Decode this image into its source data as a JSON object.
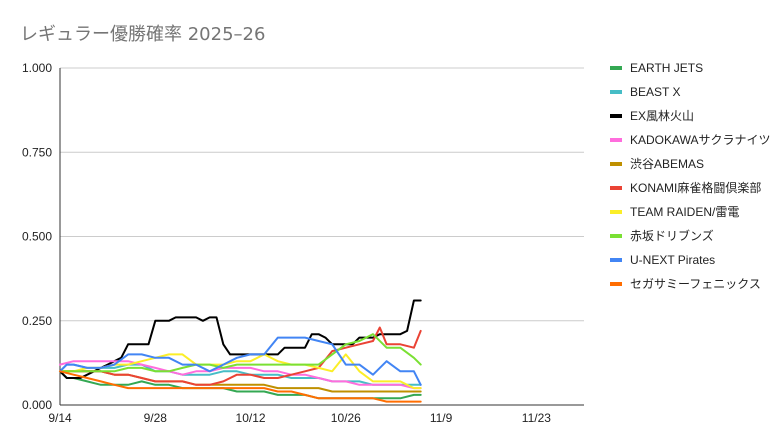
{
  "chart_data": {
    "type": "line",
    "title": "レギュラー優勝確率 2025–26",
    "xlabel": "",
    "ylabel": "",
    "ylim": [
      0,
      1
    ],
    "y_ticks": [
      "0.000",
      "0.250",
      "0.500",
      "0.750",
      "1.000"
    ],
    "y_tick_values": [
      0,
      0.25,
      0.5,
      0.75,
      1.0
    ],
    "x_domain_days": [
      0,
      77
    ],
    "x_ticks": [
      {
        "label": "9/14",
        "day": 0
      },
      {
        "label": "9/28",
        "day": 14
      },
      {
        "label": "10/12",
        "day": 28
      },
      {
        "label": "10/26",
        "day": 42
      },
      {
        "label": "11/9",
        "day": 56
      },
      {
        "label": "11/23",
        "day": 70
      }
    ],
    "grid": "horizontal",
    "legend_position": "right",
    "series": [
      {
        "name": "EARTH JETS",
        "color": "#34a853",
        "x": [
          0,
          1,
          2,
          4,
          6,
          8,
          10,
          12,
          14,
          16,
          18,
          20,
          22,
          24,
          26,
          28,
          30,
          32,
          34,
          36,
          38,
          40,
          42,
          44,
          46,
          48,
          50,
          52,
          53
        ],
        "y": [
          0.1,
          0.08,
          0.08,
          0.07,
          0.06,
          0.06,
          0.06,
          0.07,
          0.06,
          0.06,
          0.05,
          0.05,
          0.05,
          0.05,
          0.04,
          0.04,
          0.04,
          0.03,
          0.03,
          0.03,
          0.02,
          0.02,
          0.02,
          0.02,
          0.02,
          0.02,
          0.02,
          0.03,
          0.03
        ]
      },
      {
        "name": "BEAST X",
        "color": "#46bdc6",
        "x": [
          0,
          1,
          2,
          4,
          6,
          8,
          10,
          12,
          14,
          16,
          18,
          20,
          22,
          24,
          26,
          28,
          30,
          32,
          34,
          36,
          38,
          40,
          42,
          44,
          46,
          48,
          50,
          52,
          53
        ],
        "y": [
          0.1,
          0.12,
          0.12,
          0.11,
          0.11,
          0.11,
          0.12,
          0.12,
          0.1,
          0.1,
          0.09,
          0.09,
          0.09,
          0.1,
          0.1,
          0.09,
          0.09,
          0.09,
          0.08,
          0.08,
          0.08,
          0.07,
          0.07,
          0.07,
          0.06,
          0.06,
          0.06,
          0.06,
          0.06
        ]
      },
      {
        "name": "EX風林火山",
        "color": "#000000",
        "x": [
          0,
          1,
          2,
          3,
          4,
          5,
          6,
          7,
          8,
          9,
          10,
          11,
          12,
          13,
          14,
          15,
          16,
          17,
          18,
          19,
          20,
          21,
          22,
          23,
          24,
          25,
          26,
          27,
          28,
          29,
          30,
          31,
          32,
          33,
          34,
          35,
          36,
          37,
          38,
          39,
          40,
          41,
          42,
          43,
          44,
          45,
          46,
          47,
          48,
          49,
          50,
          51,
          52,
          53
        ],
        "y": [
          0.1,
          0.08,
          0.08,
          0.08,
          0.09,
          0.1,
          0.11,
          0.12,
          0.13,
          0.14,
          0.18,
          0.18,
          0.18,
          0.18,
          0.25,
          0.25,
          0.25,
          0.26,
          0.26,
          0.26,
          0.26,
          0.25,
          0.26,
          0.26,
          0.18,
          0.15,
          0.15,
          0.15,
          0.15,
          0.15,
          0.15,
          0.15,
          0.15,
          0.17,
          0.17,
          0.17,
          0.17,
          0.21,
          0.21,
          0.2,
          0.18,
          0.18,
          0.18,
          0.18,
          0.2,
          0.2,
          0.2,
          0.21,
          0.21,
          0.21,
          0.21,
          0.22,
          0.31,
          0.31
        ]
      },
      {
        "name": "KADOKAWAサクラナイツ",
        "color": "#ff6ddd",
        "x": [
          0,
          2,
          4,
          6,
          8,
          10,
          12,
          14,
          16,
          18,
          20,
          22,
          24,
          26,
          28,
          30,
          32,
          34,
          36,
          38,
          40,
          42,
          44,
          46,
          48,
          50,
          52,
          53
        ],
        "y": [
          0.12,
          0.13,
          0.13,
          0.13,
          0.13,
          0.13,
          0.12,
          0.11,
          0.1,
          0.09,
          0.1,
          0.1,
          0.11,
          0.11,
          0.11,
          0.1,
          0.1,
          0.09,
          0.09,
          0.08,
          0.07,
          0.07,
          0.06,
          0.06,
          0.06,
          0.06,
          0.05,
          0.05
        ]
      },
      {
        "name": "渋谷ABEMAS",
        "color": "#bf9000",
        "x": [
          0,
          2,
          4,
          6,
          8,
          10,
          12,
          14,
          16,
          18,
          20,
          22,
          24,
          26,
          28,
          30,
          32,
          34,
          36,
          38,
          40,
          42,
          44,
          46,
          48,
          50,
          52,
          53
        ],
        "y": [
          0.1,
          0.1,
          0.1,
          0.1,
          0.09,
          0.09,
          0.08,
          0.07,
          0.07,
          0.07,
          0.06,
          0.06,
          0.06,
          0.06,
          0.06,
          0.06,
          0.05,
          0.05,
          0.05,
          0.05,
          0.04,
          0.04,
          0.04,
          0.04,
          0.04,
          0.04,
          0.04,
          0.04
        ]
      },
      {
        "name": "KONAMI麻雀格闘倶楽部",
        "color": "#ea4335",
        "x": [
          0,
          2,
          4,
          6,
          8,
          10,
          12,
          14,
          16,
          18,
          20,
          22,
          24,
          26,
          28,
          30,
          32,
          34,
          36,
          38,
          40,
          42,
          44,
          46,
          47,
          48,
          50,
          52,
          53
        ],
        "y": [
          0.1,
          0.1,
          0.1,
          0.1,
          0.09,
          0.09,
          0.08,
          0.07,
          0.07,
          0.07,
          0.06,
          0.06,
          0.07,
          0.09,
          0.09,
          0.08,
          0.08,
          0.09,
          0.1,
          0.11,
          0.16,
          0.17,
          0.18,
          0.19,
          0.23,
          0.18,
          0.18,
          0.17,
          0.22
        ]
      },
      {
        "name": "TEAM RAIDEN/雷電",
        "color": "#fbee28",
        "x": [
          0,
          2,
          4,
          6,
          8,
          10,
          12,
          14,
          16,
          18,
          20,
          22,
          24,
          26,
          28,
          30,
          32,
          34,
          36,
          38,
          40,
          42,
          44,
          46,
          48,
          50,
          52,
          53
        ],
        "y": [
          0.1,
          0.1,
          0.11,
          0.11,
          0.12,
          0.12,
          0.13,
          0.14,
          0.15,
          0.15,
          0.12,
          0.12,
          0.12,
          0.13,
          0.13,
          0.15,
          0.13,
          0.12,
          0.12,
          0.11,
          0.1,
          0.15,
          0.1,
          0.07,
          0.07,
          0.07,
          0.05,
          0.05
        ]
      },
      {
        "name": "赤坂ドリブンズ",
        "color": "#7ae033",
        "x": [
          0,
          2,
          4,
          6,
          8,
          10,
          12,
          14,
          16,
          18,
          20,
          22,
          24,
          26,
          28,
          30,
          32,
          34,
          36,
          38,
          40,
          42,
          44,
          46,
          48,
          50,
          52,
          53
        ],
        "y": [
          0.1,
          0.1,
          0.1,
          0.1,
          0.1,
          0.11,
          0.11,
          0.1,
          0.1,
          0.11,
          0.12,
          0.12,
          0.11,
          0.12,
          0.12,
          0.12,
          0.12,
          0.12,
          0.12,
          0.12,
          0.15,
          0.18,
          0.19,
          0.21,
          0.17,
          0.17,
          0.14,
          0.12
        ]
      },
      {
        "name": "U-NEXT Pirates",
        "color": "#4285f4",
        "x": [
          0,
          1,
          2,
          4,
          6,
          8,
          10,
          12,
          14,
          16,
          18,
          20,
          22,
          24,
          26,
          28,
          30,
          32,
          34,
          36,
          38,
          40,
          42,
          44,
          46,
          48,
          50,
          52,
          53
        ],
        "y": [
          0.1,
          0.12,
          0.12,
          0.11,
          0.11,
          0.12,
          0.15,
          0.15,
          0.14,
          0.14,
          0.12,
          0.12,
          0.1,
          0.12,
          0.14,
          0.15,
          0.15,
          0.2,
          0.2,
          0.2,
          0.19,
          0.18,
          0.12,
          0.12,
          0.09,
          0.13,
          0.1,
          0.1,
          0.06
        ]
      },
      {
        "name": "セガサミーフェニックス",
        "color": "#ff6d01",
        "x": [
          0,
          2,
          4,
          6,
          8,
          10,
          12,
          14,
          16,
          18,
          20,
          22,
          24,
          26,
          28,
          30,
          32,
          34,
          36,
          38,
          40,
          42,
          44,
          46,
          48,
          50,
          52,
          53
        ],
        "y": [
          0.1,
          0.09,
          0.08,
          0.07,
          0.06,
          0.05,
          0.05,
          0.05,
          0.05,
          0.05,
          0.05,
          0.05,
          0.05,
          0.05,
          0.05,
          0.05,
          0.04,
          0.04,
          0.03,
          0.02,
          0.02,
          0.02,
          0.02,
          0.02,
          0.01,
          0.01,
          0.01,
          0.01
        ]
      }
    ]
  }
}
